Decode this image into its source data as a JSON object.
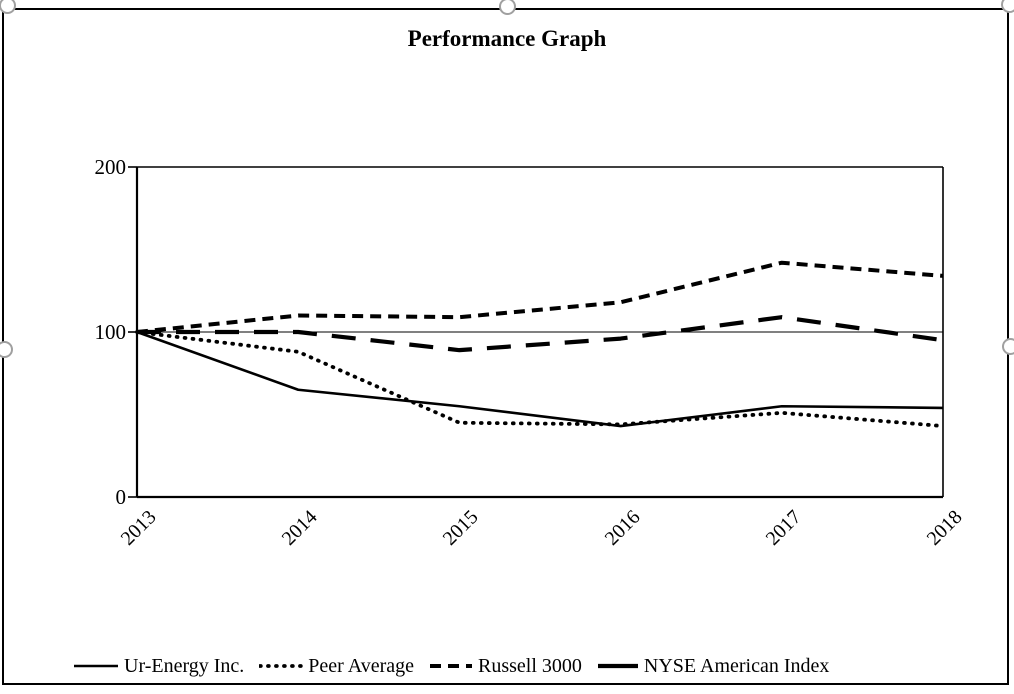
{
  "chart_data": {
    "type": "line",
    "title": "Performance Graph",
    "categories": [
      "2013",
      "2014",
      "2015",
      "2016",
      "2017",
      "2018"
    ],
    "series": [
      {
        "name": "Ur-Energy Inc.",
        "style": "solid",
        "values": [
          100,
          65,
          55,
          43,
          55,
          54
        ]
      },
      {
        "name": "Peer Average",
        "style": "dotted",
        "values": [
          100,
          88,
          45,
          44,
          51,
          43
        ]
      },
      {
        "name": "Russell 3000",
        "style": "dashed",
        "values": [
          100,
          110,
          109,
          118,
          142,
          134
        ]
      },
      {
        "name": "NYSE American Index",
        "style": "long-dash",
        "values": [
          100,
          100,
          89,
          96,
          109,
          95
        ]
      }
    ],
    "xlabel": "",
    "ylabel": "",
    "ylim": [
      0,
      200
    ],
    "yticks": [
      0,
      100,
      200
    ],
    "gridlines": [
      100
    ],
    "legend_position": "bottom",
    "line_color": "#000000",
    "background_color": "#ffffff"
  },
  "selection": {
    "handle_shape": "circle",
    "handle_color": "#a0a0a0"
  }
}
